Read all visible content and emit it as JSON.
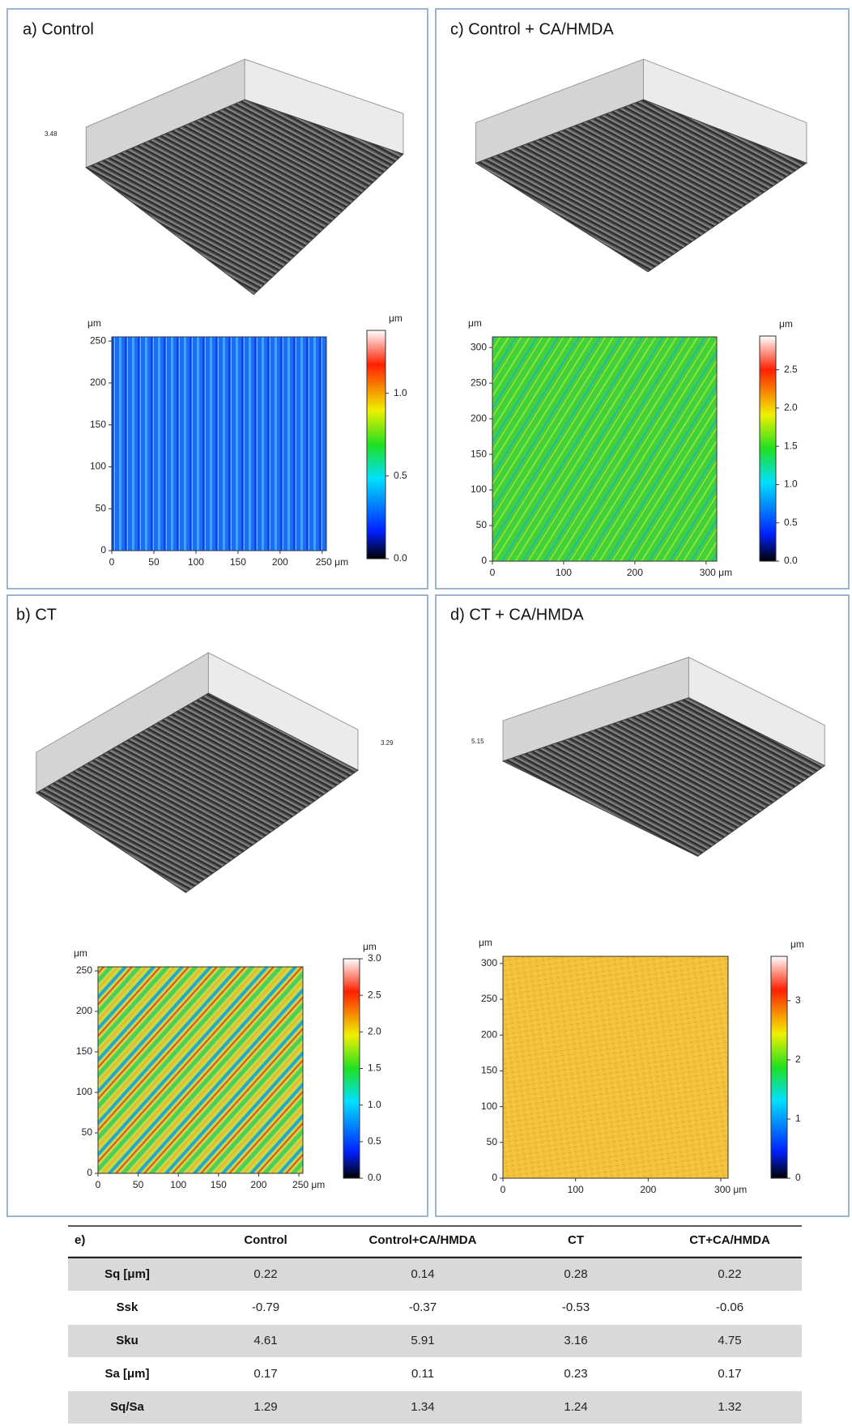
{
  "panels": [
    {
      "label": "a) Control",
      "surface_zmax": "3.48",
      "map": {
        "unit": "μm",
        "xlim": [
          0,
          255
        ],
        "ylim": [
          0,
          255
        ],
        "xticks": [
          0,
          50,
          100,
          150,
          200,
          {
            "value": 250,
            "label": "250 μm"
          }
        ],
        "yticks": [
          0,
          50,
          100,
          150,
          200,
          250
        ],
        "colorbar": {
          "unit": "μm",
          "lim": [
            0,
            1.38
          ],
          "ticks": [
            {
              "value": 0,
              "label": "0.0"
            },
            0.5,
            {
              "value": 1,
              "label": "1.0"
            }
          ]
        }
      }
    },
    {
      "label": "c) Control + CA/HMDA",
      "map": {
        "unit": "μm",
        "xlim": [
          0,
          315
        ],
        "ylim": [
          0,
          315
        ],
        "xticks": [
          0,
          100,
          200,
          {
            "value": 300,
            "label": "300 μm"
          }
        ],
        "yticks": [
          0,
          50,
          100,
          150,
          200,
          250,
          300
        ],
        "colorbar": {
          "unit": "μm",
          "lim": [
            0,
            2.94
          ],
          "ticks": [
            {
              "value": 0,
              "label": "0.0"
            },
            0.5,
            {
              "value": 1,
              "label": "1.0"
            },
            1.5,
            {
              "value": 2,
              "label": "2.0"
            },
            2.5
          ]
        }
      }
    },
    {
      "label": "b) CT",
      "surface_zmax": "3.29",
      "map": {
        "unit": "μm",
        "xlim": [
          0,
          255
        ],
        "ylim": [
          0,
          255
        ],
        "xticks": [
          0,
          50,
          100,
          150,
          200,
          {
            "value": 250,
            "label": "250 μm"
          }
        ],
        "yticks": [
          0,
          50,
          100,
          150,
          200,
          250
        ],
        "colorbar": {
          "unit": "μm",
          "lim": [
            0,
            3
          ],
          "ticks": [
            {
              "value": 0,
              "label": "0.0"
            },
            0.5,
            {
              "value": 1,
              "label": "1.0"
            },
            1.5,
            {
              "value": 2,
              "label": "2.0"
            },
            2.5,
            {
              "value": 3,
              "label": "3.0"
            }
          ]
        }
      }
    },
    {
      "label": "d) CT + CA/HMDA",
      "surface_zmax": "5.15",
      "map": {
        "unit": "μm",
        "xlim": [
          0,
          310
        ],
        "ylim": [
          0,
          310
        ],
        "xticks": [
          0,
          100,
          200,
          {
            "value": 300,
            "label": "300 μm"
          }
        ],
        "yticks": [
          0,
          50,
          100,
          150,
          200,
          250,
          300
        ],
        "colorbar": {
          "unit": "μm",
          "lim": [
            0,
            3.75
          ],
          "ticks": [
            0,
            1,
            2,
            3
          ]
        }
      }
    }
  ],
  "table": {
    "header": [
      "e)",
      "Control",
      "Control+CA/HMDA",
      "CT",
      "CT+CA/HMDA"
    ],
    "rows": [
      [
        "Sq [μm]",
        0.22,
        0.14,
        0.28,
        0.22
      ],
      [
        "Ssk",
        -0.79,
        -0.37,
        -0.53,
        -0.06
      ],
      [
        "Sku",
        4.61,
        5.91,
        3.16,
        4.75
      ],
      [
        "Sa [μm]",
        0.17,
        0.11,
        0.23,
        0.17
      ],
      [
        "Sq/Sa",
        1.29,
        1.34,
        1.24,
        1.32
      ]
    ]
  }
}
